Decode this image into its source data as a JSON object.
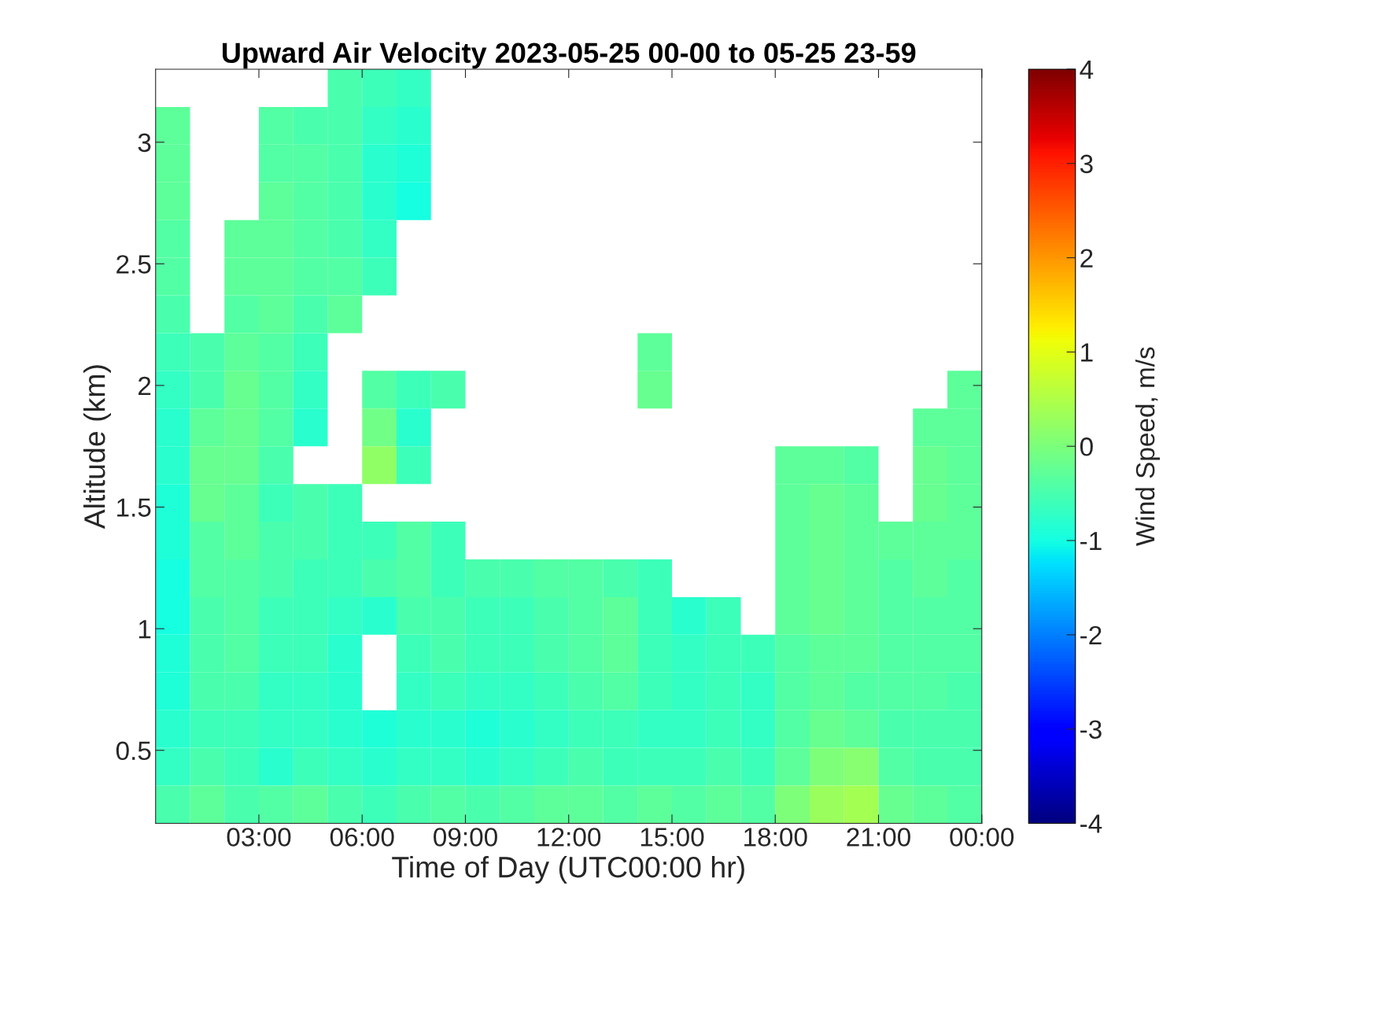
{
  "chart_data": {
    "type": "heatmap",
    "title": "Upward Air Velocity 2023-05-25 00-00 to 05-25 23-59",
    "xlabel": "Time of Day (UTC00:00 hr)",
    "ylabel": "Altitude (km)",
    "clabel": "Wind Speed, m/s",
    "xlim": [
      0,
      24
    ],
    "ylim": [
      0.2,
      3.3
    ],
    "clim": [
      -4,
      4
    ],
    "xticks": [
      {
        "value": 3,
        "label": "03:00"
      },
      {
        "value": 6,
        "label": "06:00"
      },
      {
        "value": 9,
        "label": "09:00"
      },
      {
        "value": 12,
        "label": "12:00"
      },
      {
        "value": 15,
        "label": "15:00"
      },
      {
        "value": 18,
        "label": "18:00"
      },
      {
        "value": 21,
        "label": "21:00"
      },
      {
        "value": 24,
        "label": "00:00"
      }
    ],
    "yticks": [
      0.5,
      1,
      1.5,
      2,
      2.5,
      3
    ],
    "cticks": [
      -4,
      -3,
      -2,
      -1,
      0,
      1,
      2,
      3,
      4
    ],
    "grid": false,
    "cells": [
      [
        null,
        null,
        null,
        null,
        null,
        -0.5,
        -0.6,
        -0.7,
        null,
        null,
        null,
        null,
        null,
        null,
        null,
        null,
        null,
        null,
        null,
        null,
        null,
        null,
        null,
        null
      ],
      [
        -0.3,
        null,
        null,
        -0.4,
        -0.5,
        -0.5,
        -0.7,
        -0.8,
        null,
        null,
        null,
        null,
        null,
        null,
        null,
        null,
        null,
        null,
        null,
        null,
        null,
        null,
        null,
        null
      ],
      [
        -0.3,
        null,
        null,
        -0.4,
        -0.4,
        -0.5,
        -0.8,
        -0.9,
        null,
        null,
        null,
        null,
        null,
        null,
        null,
        null,
        null,
        null,
        null,
        null,
        null,
        null,
        null,
        null
      ],
      [
        -0.3,
        null,
        null,
        -0.3,
        -0.4,
        -0.5,
        -0.8,
        -1.0,
        null,
        null,
        null,
        null,
        null,
        null,
        null,
        null,
        null,
        null,
        null,
        null,
        null,
        null,
        null,
        null
      ],
      [
        -0.4,
        null,
        -0.3,
        -0.3,
        -0.4,
        -0.5,
        -0.7,
        null,
        null,
        null,
        null,
        null,
        null,
        null,
        null,
        null,
        null,
        null,
        null,
        null,
        null,
        null,
        null,
        null
      ],
      [
        -0.4,
        null,
        -0.3,
        -0.3,
        -0.4,
        -0.4,
        -0.6,
        null,
        null,
        null,
        null,
        null,
        null,
        null,
        null,
        null,
        null,
        null,
        null,
        null,
        null,
        null,
        null,
        null
      ],
      [
        -0.5,
        null,
        -0.4,
        -0.3,
        -0.5,
        -0.3,
        null,
        null,
        null,
        null,
        null,
        null,
        null,
        null,
        null,
        null,
        null,
        null,
        null,
        null,
        null,
        null,
        null,
        null
      ],
      [
        -0.6,
        -0.5,
        -0.3,
        -0.4,
        -0.6,
        null,
        null,
        null,
        null,
        null,
        null,
        null,
        null,
        null,
        -0.3,
        null,
        null,
        null,
        null,
        null,
        null,
        null,
        null,
        null
      ],
      [
        -0.7,
        -0.5,
        -0.2,
        -0.4,
        -0.7,
        null,
        -0.4,
        -0.6,
        -0.5,
        null,
        null,
        null,
        null,
        null,
        -0.2,
        null,
        null,
        null,
        null,
        null,
        null,
        null,
        null,
        -0.3
      ],
      [
        -0.8,
        -0.3,
        -0.2,
        -0.4,
        -0.8,
        null,
        -0.1,
        -0.8,
        null,
        null,
        null,
        null,
        null,
        null,
        null,
        null,
        null,
        null,
        null,
        null,
        null,
        null,
        -0.3,
        -0.3
      ],
      [
        -0.8,
        -0.2,
        -0.2,
        -0.5,
        null,
        null,
        0.2,
        -0.6,
        null,
        null,
        null,
        null,
        null,
        null,
        null,
        null,
        null,
        null,
        -0.3,
        -0.3,
        -0.4,
        null,
        -0.2,
        -0.3
      ],
      [
        -0.9,
        -0.2,
        -0.3,
        -0.6,
        -0.5,
        -0.6,
        null,
        null,
        null,
        null,
        null,
        null,
        null,
        null,
        null,
        null,
        null,
        null,
        -0.3,
        -0.2,
        -0.3,
        null,
        -0.2,
        -0.3
      ],
      [
        -0.9,
        -0.4,
        -0.3,
        -0.5,
        -0.5,
        -0.6,
        -0.6,
        -0.4,
        -0.6,
        null,
        null,
        null,
        null,
        null,
        null,
        null,
        null,
        null,
        -0.3,
        -0.2,
        -0.3,
        -0.3,
        -0.3,
        -0.3
      ],
      [
        -1.0,
        -0.4,
        -0.4,
        -0.5,
        -0.6,
        -0.6,
        -0.5,
        -0.4,
        -0.6,
        -0.5,
        -0.5,
        -0.4,
        -0.4,
        -0.5,
        -0.6,
        null,
        null,
        null,
        -0.3,
        -0.2,
        -0.3,
        -0.4,
        -0.3,
        -0.4
      ],
      [
        -1.0,
        -0.5,
        -0.4,
        -0.6,
        -0.6,
        -0.7,
        -0.8,
        -0.5,
        -0.5,
        -0.6,
        -0.6,
        -0.5,
        -0.4,
        -0.3,
        -0.6,
        -0.8,
        -0.6,
        null,
        -0.3,
        -0.2,
        -0.3,
        -0.4,
        -0.4,
        -0.4
      ],
      [
        -0.9,
        -0.5,
        -0.4,
        -0.6,
        -0.6,
        -0.8,
        null,
        -0.6,
        -0.5,
        -0.6,
        -0.6,
        -0.5,
        -0.4,
        -0.3,
        -0.6,
        -0.7,
        -0.6,
        -0.6,
        -0.4,
        -0.3,
        -0.3,
        -0.4,
        -0.4,
        -0.4
      ],
      [
        -0.9,
        -0.5,
        -0.5,
        -0.7,
        -0.7,
        -0.8,
        null,
        -0.7,
        -0.6,
        -0.7,
        -0.7,
        -0.6,
        -0.5,
        -0.4,
        -0.6,
        -0.7,
        -0.6,
        -0.7,
        -0.4,
        -0.3,
        -0.4,
        -0.4,
        -0.4,
        -0.5
      ],
      [
        -0.8,
        -0.6,
        -0.6,
        -0.7,
        -0.7,
        -0.8,
        -0.9,
        -0.8,
        -0.8,
        -0.9,
        -0.8,
        -0.7,
        -0.6,
        -0.6,
        -0.7,
        -0.7,
        -0.6,
        -0.7,
        -0.4,
        -0.2,
        -0.3,
        -0.5,
        -0.5,
        -0.5
      ],
      [
        -0.7,
        -0.5,
        -0.6,
        -0.8,
        -0.6,
        -0.7,
        -0.8,
        -0.7,
        -0.7,
        -0.8,
        -0.7,
        -0.6,
        -0.5,
        -0.6,
        -0.6,
        -0.6,
        -0.5,
        -0.6,
        -0.3,
        0.0,
        0.1,
        -0.4,
        -0.5,
        -0.5
      ],
      [
        -0.5,
        -0.3,
        -0.5,
        -0.4,
        -0.3,
        -0.5,
        -0.6,
        -0.5,
        -0.4,
        -0.5,
        -0.4,
        -0.3,
        -0.3,
        -0.4,
        -0.3,
        -0.4,
        -0.3,
        -0.4,
        0.0,
        0.3,
        0.4,
        -0.2,
        -0.3,
        -0.4
      ]
    ]
  }
}
